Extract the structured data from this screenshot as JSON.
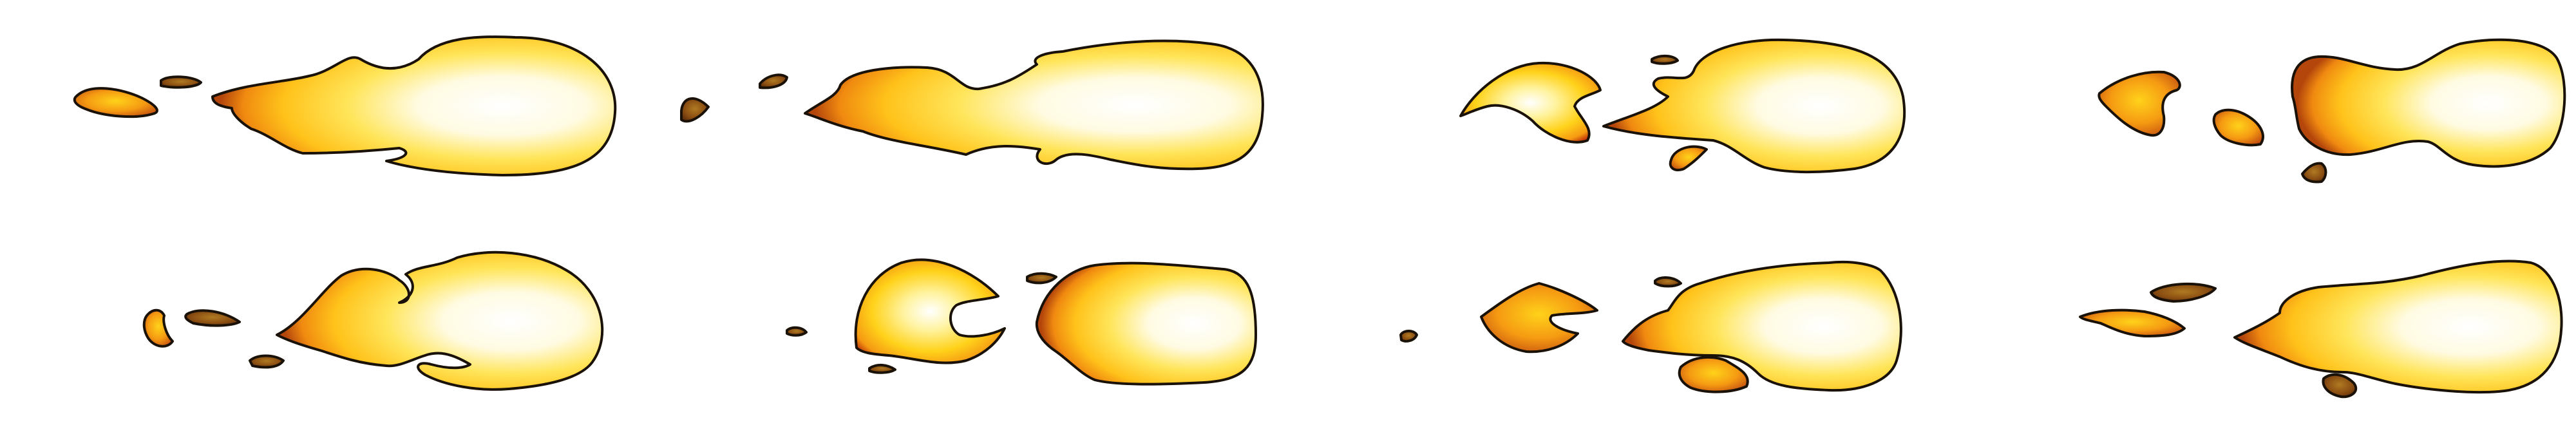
{
  "sprite_sheet": {
    "kind": "flame-animation-frames",
    "rows": 2,
    "columns": 4,
    "frame_count": 8,
    "colors": {
      "core": "#ffffff",
      "inner": "#fff3a0",
      "yellow": "#ffd21a",
      "orange": "#f59a12",
      "red": "#c8400a",
      "ember": "#7a3a0e",
      "outline": "#1a1208"
    }
  }
}
